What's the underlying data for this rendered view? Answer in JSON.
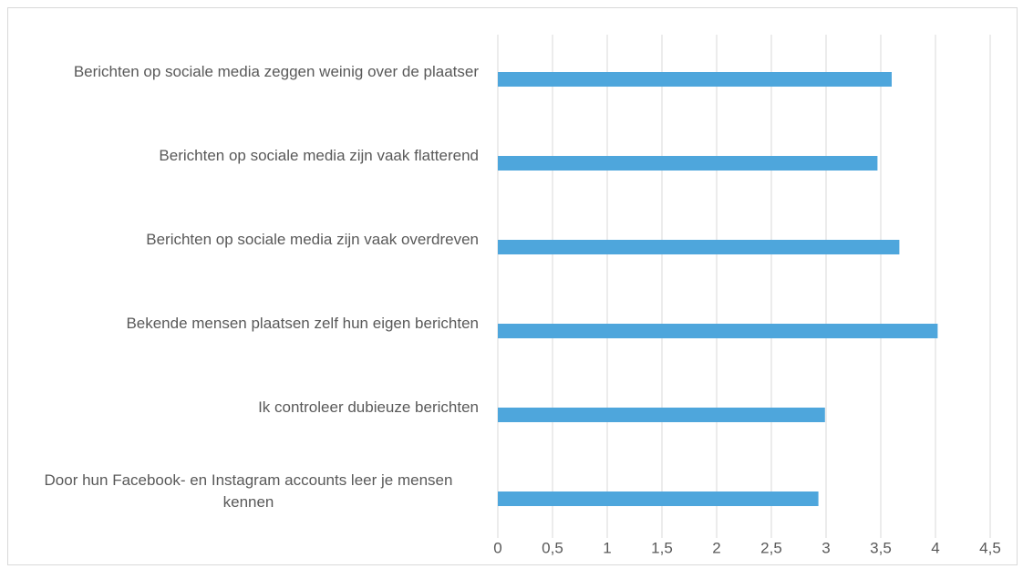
{
  "chart_data": {
    "type": "barh",
    "categories": [
      "Berichten op sociale media zeggen weinig over de plaatser",
      "Berichten op sociale media zijn vaak flatterend",
      "Berichten op sociale media zijn vaak overdreven",
      "Bekende mensen plaatsen zelf hun eigen berichten",
      "Ik controleer dubieuze berichten",
      "Door hun Facebook- en Instagram accounts leer je mensen kennen"
    ],
    "values": [
      3.6,
      3.47,
      3.67,
      4.02,
      2.99,
      2.93
    ],
    "color": "#4ea6dc",
    "xlim": [
      0,
      4.5
    ],
    "xticks": [
      0,
      {
        "value": 0.5,
        "label": "0,5"
      },
      1,
      {
        "value": 1.5,
        "label": "1,5"
      },
      2,
      {
        "value": 2.5,
        "label": "2,5"
      },
      3,
      {
        "value": 3.5,
        "label": "3,5"
      },
      4,
      {
        "value": 4.5,
        "label": "4,5"
      }
    ],
    "grid": true
  }
}
